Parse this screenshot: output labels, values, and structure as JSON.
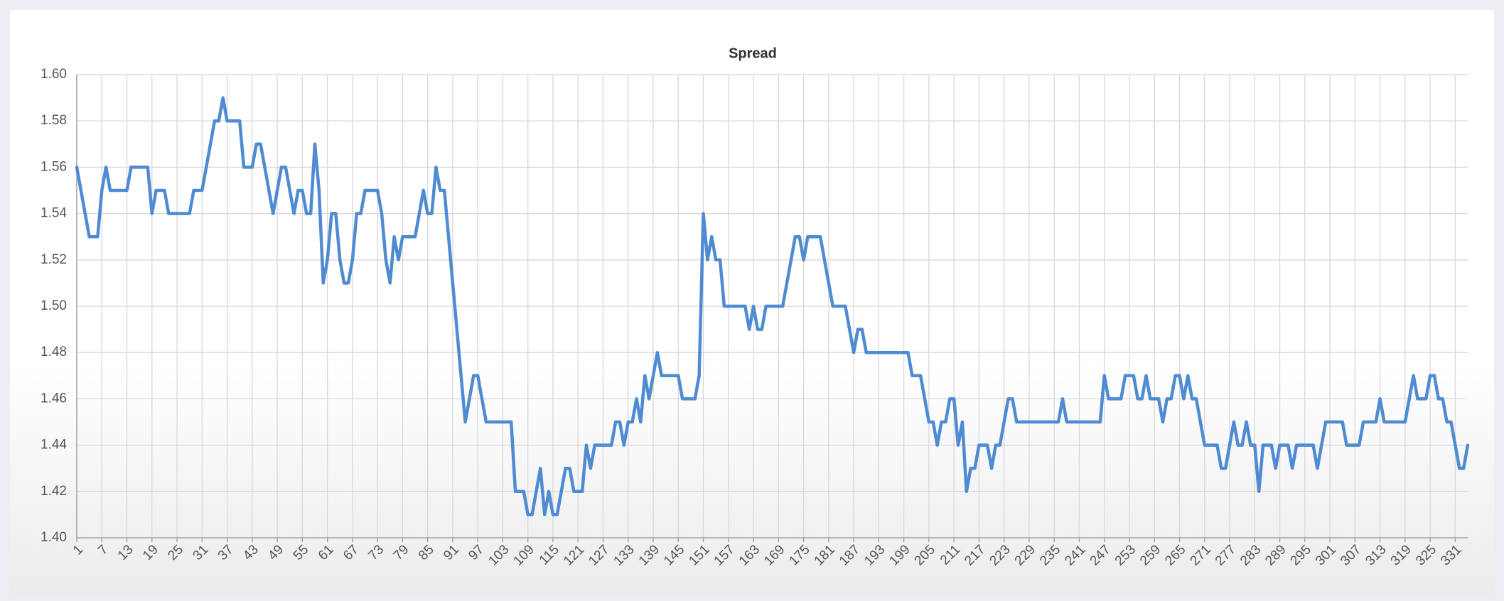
{
  "chart_data": {
    "type": "line",
    "title": "Spread",
    "color": "#4f8bd3",
    "grid": true,
    "xlim": [
      1,
      334
    ],
    "ylim": [
      1.4,
      1.6
    ],
    "yticks": [
      {
        "value": 1.4,
        "label": "1.40"
      },
      1.42,
      1.44,
      1.46,
      1.48,
      {
        "value": 1.5,
        "label": "1.50"
      },
      1.52,
      1.54,
      1.56,
      1.58,
      {
        "value": 1.6,
        "label": "1.60"
      }
    ],
    "xticks": [
      1,
      7,
      13,
      19,
      25,
      31,
      37,
      43,
      49,
      55,
      61,
      67,
      73,
      79,
      85,
      91,
      97,
      103,
      109,
      115,
      121,
      127,
      133,
      139,
      145,
      151,
      157,
      163,
      169,
      175,
      181,
      187,
      193,
      199,
      205,
      211,
      217,
      223,
      229,
      235,
      241,
      247,
      253,
      259,
      265,
      271,
      277,
      283,
      289,
      295,
      301,
      307,
      313,
      319,
      325,
      331
    ],
    "x": [
      1,
      2,
      3,
      4,
      5,
      6,
      7,
      8,
      9,
      10,
      11,
      12,
      13,
      14,
      15,
      16,
      17,
      18,
      19,
      20,
      21,
      22,
      23,
      24,
      25,
      26,
      27,
      28,
      29,
      30,
      31,
      32,
      33,
      34,
      35,
      36,
      37,
      38,
      39,
      40,
      41,
      42,
      43,
      44,
      45,
      46,
      47,
      48,
      49,
      50,
      51,
      52,
      53,
      54,
      55,
      56,
      57,
      58,
      59,
      60,
      61,
      62,
      63,
      64,
      65,
      66,
      67,
      68,
      69,
      70,
      71,
      72,
      73,
      74,
      75,
      76,
      77,
      78,
      79,
      80,
      81,
      82,
      83,
      84,
      85,
      86,
      87,
      88,
      89,
      90,
      91,
      92,
      93,
      94,
      95,
      96,
      97,
      98,
      99,
      100,
      101,
      102,
      103,
      104,
      105,
      106,
      107,
      108,
      109,
      110,
      111,
      112,
      113,
      114,
      115,
      116,
      117,
      118,
      119,
      120,
      121,
      122,
      123,
      124,
      125,
      126,
      127,
      128,
      129,
      130,
      131,
      132,
      133,
      134,
      135,
      136,
      137,
      138,
      139,
      140,
      141,
      142,
      143,
      144,
      145,
      146,
      147,
      148,
      149,
      150,
      151,
      152,
      153,
      154,
      155,
      156,
      157,
      158,
      159,
      160,
      161,
      162,
      163,
      164,
      165,
      166,
      167,
      168,
      169,
      170,
      171,
      172,
      173,
      174,
      175,
      176,
      177,
      178,
      179,
      180,
      181,
      182,
      183,
      184,
      185,
      186,
      187,
      188,
      189,
      190,
      191,
      192,
      193,
      194,
      195,
      196,
      197,
      198,
      199,
      200,
      201,
      202,
      203,
      204,
      205,
      206,
      207,
      208,
      209,
      210,
      211,
      212,
      213,
      214,
      215,
      216,
      217,
      218,
      219,
      220,
      221,
      222,
      223,
      224,
      225,
      226,
      227,
      228,
      229,
      230,
      231,
      232,
      233,
      234,
      235,
      236,
      237,
      238,
      239,
      240,
      241,
      242,
      243,
      244,
      245,
      246,
      247,
      248,
      249,
      250,
      251,
      252,
      253,
      254,
      255,
      256,
      257,
      258,
      259,
      260,
      261,
      262,
      263,
      264,
      265,
      266,
      267,
      268,
      269,
      270,
      271,
      272,
      273,
      274,
      275,
      276,
      277,
      278,
      279,
      280,
      281,
      282,
      283,
      284,
      285,
      286,
      287,
      288,
      289,
      290,
      291,
      292,
      293,
      294,
      295,
      296,
      297,
      298,
      299,
      300,
      301,
      302,
      303,
      304,
      305,
      306,
      307,
      308,
      309,
      310,
      311,
      312,
      313,
      314,
      315,
      316,
      317,
      318,
      319,
      320,
      321,
      322,
      323,
      324,
      325,
      326,
      327,
      328,
      329,
      330,
      331,
      332,
      333,
      334
    ],
    "values": [
      1.56,
      1.55,
      1.54,
      1.53,
      1.53,
      1.53,
      1.55,
      1.56,
      1.55,
      1.55,
      1.55,
      1.55,
      1.55,
      1.56,
      1.56,
      1.56,
      1.56,
      1.56,
      1.54,
      1.55,
      1.55,
      1.55,
      1.54,
      1.54,
      1.54,
      1.54,
      1.54,
      1.54,
      1.55,
      1.55,
      1.55,
      1.56,
      1.57,
      1.58,
      1.58,
      1.59,
      1.58,
      1.58,
      1.58,
      1.58,
      1.56,
      1.56,
      1.56,
      1.57,
      1.57,
      1.56,
      1.55,
      1.54,
      1.55,
      1.56,
      1.56,
      1.55,
      1.54,
      1.55,
      1.55,
      1.54,
      1.54,
      1.57,
      1.55,
      1.51,
      1.52,
      1.54,
      1.54,
      1.52,
      1.51,
      1.51,
      1.52,
      1.54,
      1.54,
      1.55,
      1.55,
      1.55,
      1.55,
      1.54,
      1.52,
      1.51,
      1.53,
      1.52,
      1.53,
      1.53,
      1.53,
      1.53,
      1.54,
      1.55,
      1.54,
      1.54,
      1.56,
      1.55,
      1.55,
      1.53,
      1.51,
      1.49,
      1.47,
      1.45,
      1.46,
      1.47,
      1.47,
      1.46,
      1.45,
      1.45,
      1.45,
      1.45,
      1.45,
      1.45,
      1.45,
      1.42,
      1.42,
      1.42,
      1.41,
      1.41,
      1.42,
      1.43,
      1.41,
      1.42,
      1.41,
      1.41,
      1.42,
      1.43,
      1.43,
      1.42,
      1.42,
      1.42,
      1.44,
      1.43,
      1.44,
      1.44,
      1.44,
      1.44,
      1.44,
      1.45,
      1.45,
      1.44,
      1.45,
      1.45,
      1.46,
      1.45,
      1.47,
      1.46,
      1.47,
      1.48,
      1.47,
      1.47,
      1.47,
      1.47,
      1.47,
      1.46,
      1.46,
      1.46,
      1.46,
      1.47,
      1.54,
      1.52,
      1.53,
      1.52,
      1.52,
      1.5,
      1.5,
      1.5,
      1.5,
      1.5,
      1.5,
      1.49,
      1.5,
      1.49,
      1.49,
      1.5,
      1.5,
      1.5,
      1.5,
      1.5,
      1.51,
      1.52,
      1.53,
      1.53,
      1.52,
      1.53,
      1.53,
      1.53,
      1.53,
      1.52,
      1.51,
      1.5,
      1.5,
      1.5,
      1.5,
      1.49,
      1.48,
      1.49,
      1.49,
      1.48,
      1.48,
      1.48,
      1.48,
      1.48,
      1.48,
      1.48,
      1.48,
      1.48,
      1.48,
      1.48,
      1.47,
      1.47,
      1.47,
      1.46,
      1.45,
      1.45,
      1.44,
      1.45,
      1.45,
      1.46,
      1.46,
      1.44,
      1.45,
      1.42,
      1.43,
      1.43,
      1.44,
      1.44,
      1.44,
      1.43,
      1.44,
      1.44,
      1.45,
      1.46,
      1.46,
      1.45,
      1.45,
      1.45,
      1.45,
      1.45,
      1.45,
      1.45,
      1.45,
      1.45,
      1.45,
      1.45,
      1.46,
      1.45,
      1.45,
      1.45,
      1.45,
      1.45,
      1.45,
      1.45,
      1.45,
      1.45,
      1.47,
      1.46,
      1.46,
      1.46,
      1.46,
      1.47,
      1.47,
      1.47,
      1.46,
      1.46,
      1.47,
      1.46,
      1.46,
      1.46,
      1.45,
      1.46,
      1.46,
      1.47,
      1.47,
      1.46,
      1.47,
      1.46,
      1.46,
      1.45,
      1.44,
      1.44,
      1.44,
      1.44,
      1.43,
      1.43,
      1.44,
      1.45,
      1.44,
      1.44,
      1.45,
      1.44,
      1.44,
      1.42,
      1.44,
      1.44,
      1.44,
      1.43,
      1.44,
      1.44,
      1.44,
      1.43,
      1.44,
      1.44,
      1.44,
      1.44,
      1.44,
      1.43,
      1.44,
      1.45,
      1.45,
      1.45,
      1.45,
      1.45,
      1.44,
      1.44,
      1.44,
      1.44,
      1.45,
      1.45,
      1.45,
      1.45,
      1.46,
      1.45,
      1.45,
      1.45,
      1.45,
      1.45,
      1.45,
      1.46,
      1.47,
      1.46,
      1.46,
      1.46,
      1.47,
      1.47,
      1.46,
      1.46,
      1.45,
      1.45,
      1.44,
      1.43,
      1.43,
      1.44
    ]
  }
}
